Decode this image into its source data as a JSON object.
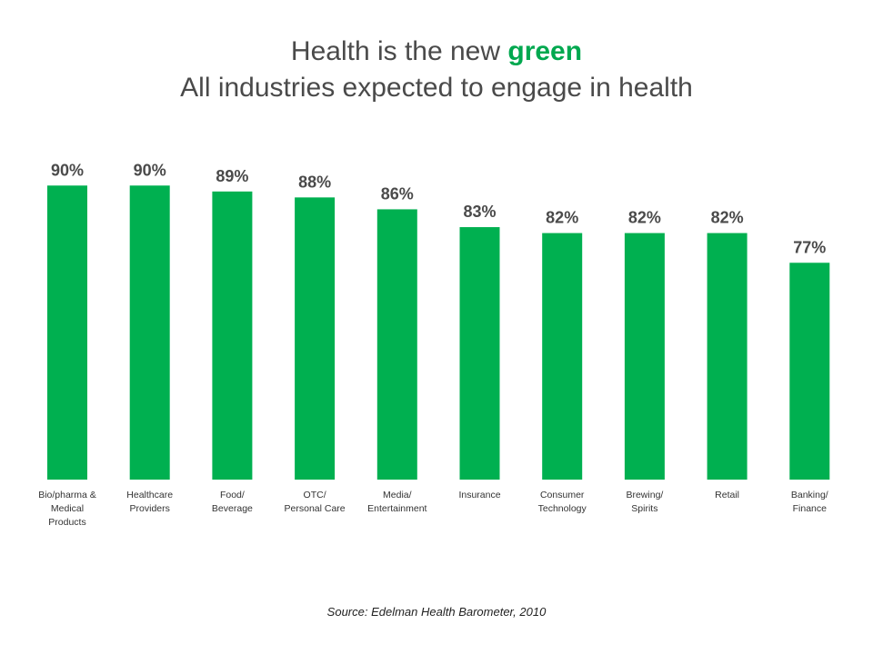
{
  "title": {
    "line1_prefix": "Health is the new ",
    "line1_accent": "green",
    "line2": "All industries expected to engage in health"
  },
  "source": "Source: Edelman Health Barometer, 2010",
  "colors": {
    "bar": "#00b050",
    "accent": "#00a84f",
    "label": "#4a4a4a",
    "category": "#333333"
  },
  "chart_data": {
    "type": "bar",
    "title": "Health is the new green — All industries expected to engage in health",
    "xlabel": "",
    "ylabel": "",
    "ylim": [
      40,
      92
    ],
    "grid": false,
    "legend": "none",
    "categories": [
      [
        "Bio/pharma &",
        "Medical",
        "Products"
      ],
      [
        "Healthcare",
        "Providers"
      ],
      [
        "Food/",
        "Beverage"
      ],
      [
        "OTC/",
        "Personal Care"
      ],
      [
        "Media/",
        "Entertainment"
      ],
      [
        "Insurance"
      ],
      [
        "Consumer",
        "Technology"
      ],
      [
        "Brewing/",
        "Spirits"
      ],
      [
        "Retail"
      ],
      [
        "Banking/",
        "Finance"
      ]
    ],
    "values": [
      90,
      90,
      89,
      88,
      86,
      83,
      82,
      82,
      82,
      77
    ],
    "data_labels": [
      "90%",
      "90%",
      "89%",
      "88%",
      "86%",
      "83%",
      "82%",
      "82%",
      "82%",
      "77%"
    ]
  }
}
